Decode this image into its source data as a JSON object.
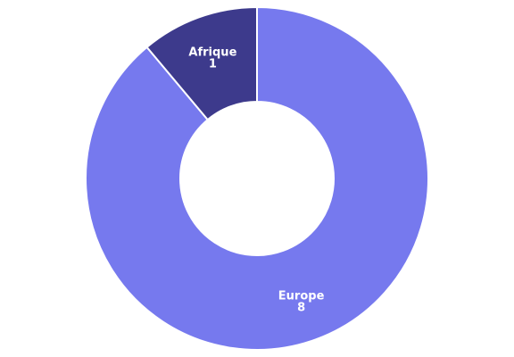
{
  "chart_data": {
    "type": "pie",
    "subtype": "donut",
    "title": "",
    "slices": [
      {
        "label": "Europe",
        "value": 8,
        "color": "#7679ee"
      },
      {
        "label": "Afrique",
        "value": 1,
        "color": "#3d3a8c"
      }
    ],
    "data_labels": "label-and-value",
    "legend": "none",
    "slice_border_color": "#ffffff"
  }
}
